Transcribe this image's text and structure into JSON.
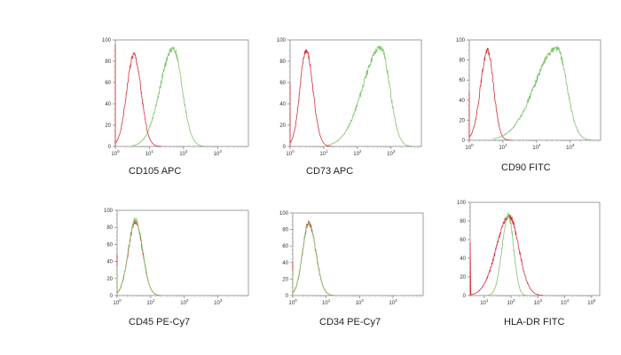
{
  "chart_data": [
    {
      "type": "line",
      "title": "CD105 APC",
      "xscale": "log",
      "xlim": [
        1,
        8000
      ],
      "ylim": [
        0,
        100
      ],
      "xtick_exponents": [
        0,
        1,
        2,
        3
      ],
      "yticks": [
        0,
        20,
        40,
        60,
        80,
        100
      ],
      "grid": false,
      "series": [
        {
          "color": "#d9303a",
          "peak": [
            3.5,
            86
          ],
          "range": [
            1,
            15
          ],
          "edge_y": 95
        },
        {
          "color": "#7dc46a",
          "peak": [
            50,
            92
          ],
          "range": [
            5,
            300
          ],
          "edge_y": 0
        }
      ]
    },
    {
      "type": "line",
      "title": "CD73 APC",
      "xscale": "log",
      "xlim": [
        1,
        8000
      ],
      "ylim": [
        0,
        100
      ],
      "xtick_exponents": [
        0,
        1,
        2,
        3
      ],
      "yticks": [
        0,
        20,
        40,
        60,
        80,
        100
      ],
      "grid": false,
      "series": [
        {
          "color": "#d9303a",
          "peak": [
            3,
            90
          ],
          "range": [
            1,
            12
          ],
          "edge_y": 60
        },
        {
          "color": "#7dc46a",
          "peak": [
            500,
            93
          ],
          "range": [
            20,
            3000
          ],
          "edge_y": 0
        }
      ]
    },
    {
      "type": "line",
      "title": "CD90 FITC",
      "xscale": "log",
      "xlim": [
        1,
        8000
      ],
      "ylim": [
        0,
        100
      ],
      "xtick_exponents": [
        0,
        1,
        2,
        3
      ],
      "yticks": [
        0,
        20,
        40,
        60,
        80,
        100
      ],
      "grid": false,
      "series": [
        {
          "color": "#d9303a",
          "peak": [
            3.5,
            89
          ],
          "range": [
            1,
            12
          ],
          "edge_y": 48
        },
        {
          "color": "#7dc46a",
          "peak": [
            400,
            92
          ],
          "range": [
            8,
            3000
          ],
          "edge_y": 0
        }
      ]
    },
    {
      "type": "line",
      "title": "CD45 PE-Cy7",
      "xscale": "log",
      "xlim": [
        1,
        8000
      ],
      "ylim": [
        0,
        100
      ],
      "xtick_exponents": [
        0,
        1,
        2,
        3
      ],
      "yticks": [
        0,
        20,
        40,
        60,
        80,
        100
      ],
      "grid": false,
      "series": [
        {
          "color": "#d9303a",
          "peak": [
            3.5,
            87
          ],
          "range": [
            1,
            15
          ],
          "edge_y": 48
        },
        {
          "color": "#7dc46a",
          "peak": [
            3.5,
            89
          ],
          "range": [
            1,
            15
          ],
          "edge_y": 35
        }
      ]
    },
    {
      "type": "line",
      "title": "CD34 PE-Cy7",
      "xscale": "log",
      "xlim": [
        1,
        8000
      ],
      "ylim": [
        0,
        100
      ],
      "xtick_exponents": [
        0,
        1,
        2,
        3
      ],
      "yticks": [
        0,
        20,
        40,
        60,
        80,
        100
      ],
      "grid": false,
      "series": [
        {
          "color": "#d9303a",
          "peak": [
            3,
            88
          ],
          "range": [
            1,
            13
          ],
          "edge_y": 40
        },
        {
          "color": "#7dc46a",
          "peak": [
            3,
            89
          ],
          "range": [
            1,
            13
          ],
          "edge_y": 30
        }
      ]
    },
    {
      "type": "line",
      "title": "HLA-DR FITC",
      "xscale": "log",
      "xlim": [
        3,
        200000
      ],
      "ylim": [
        0,
        100
      ],
      "xtick_exponents": [
        1,
        2,
        3,
        4,
        5
      ],
      "yticks": [
        0,
        20,
        40,
        60,
        80,
        100
      ],
      "grid": false,
      "series": [
        {
          "color": "#d9303a",
          "peak": [
            85,
            85
          ],
          "range": [
            5,
            1000
          ],
          "edge_y": 57
        },
        {
          "color": "#7dc46a",
          "peak": [
            80,
            86
          ],
          "range": [
            20,
            300
          ],
          "edge_y": 0
        }
      ]
    }
  ]
}
